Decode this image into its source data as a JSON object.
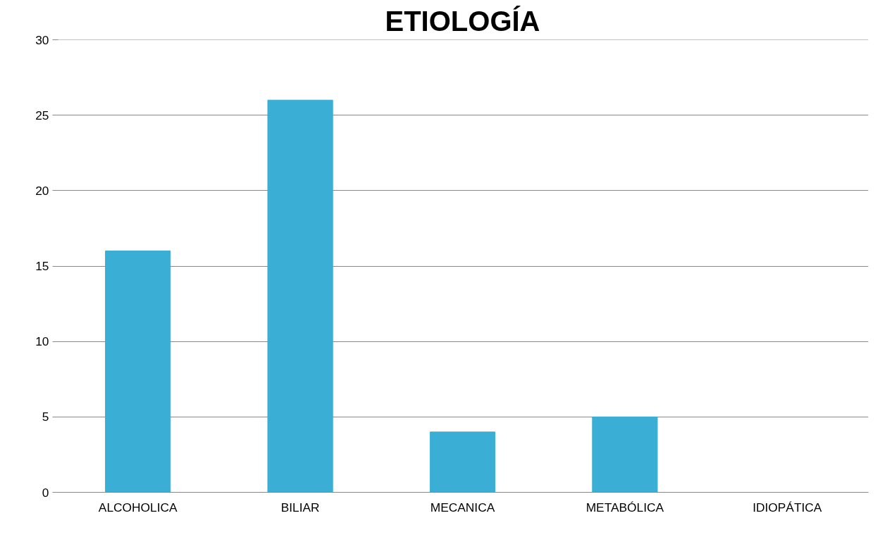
{
  "chart_data": {
    "type": "bar",
    "title": "ETIOLOGÍA",
    "categories": [
      "ALCOHOLICA",
      "BILIAR",
      "MECANICA",
      "METABÓLICA",
      "IDIOPÁTICA"
    ],
    "values": [
      16,
      26,
      4,
      5,
      0
    ],
    "color": "#3aaed4",
    "ylim": [
      0,
      30
    ],
    "yticks": [
      0,
      5,
      10,
      15,
      20,
      25,
      30
    ],
    "grid": "y"
  }
}
